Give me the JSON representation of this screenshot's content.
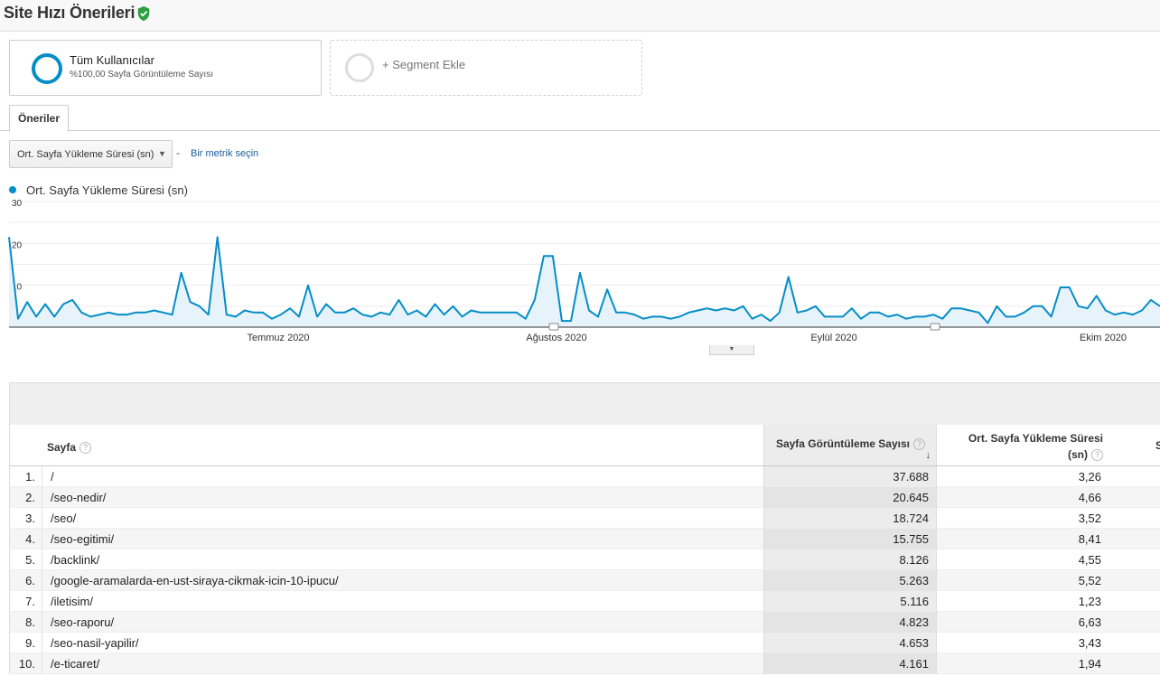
{
  "header": {
    "title": "Site Hızı Önerileri",
    "verified_icon": "shield-check-icon",
    "verified_color": "#2ea043"
  },
  "segments": {
    "active": {
      "name": "Tüm Kullanıcılar",
      "subtitle": "%100,00 Sayfa Görüntüleme Sayısı",
      "color": "#058dc7"
    },
    "add_label": "+ Segment Ekle"
  },
  "tabs": [
    {
      "label": "Öneriler",
      "active": true
    }
  ],
  "metric_selector": {
    "selected": "Ort. Sayfa Yükleme Süresi (sn)",
    "separator": "-",
    "add_link": "Bir metrik seçin"
  },
  "chart_data": {
    "type": "area",
    "series": [
      {
        "name": "Ort. Sayfa Yükleme Süresi (sn)",
        "color": "#058dc7",
        "values": [
          21.5,
          2,
          6,
          2.5,
          5.5,
          2.5,
          5.5,
          6.5,
          3.5,
          2.5,
          3,
          3.5,
          3,
          3,
          3.5,
          3.5,
          4,
          3.5,
          3,
          13,
          6,
          5,
          3,
          21.5,
          3,
          2.5,
          4,
          3.5,
          3.5,
          2,
          3,
          4.5,
          2.5,
          10,
          2.5,
          5.5,
          3.5,
          3.5,
          4.5,
          3,
          2.5,
          3.5,
          3,
          6.5,
          3,
          4,
          2.5,
          5.5,
          3,
          5,
          2.5,
          4,
          3.5,
          3.5,
          3.5,
          3.5,
          3.5,
          2,
          6.5,
          17,
          17,
          1.5,
          1.5,
          13,
          4,
          2.5,
          9,
          3.5,
          3.5,
          3,
          2,
          2.5,
          2.5,
          2,
          2.5,
          3.5,
          4,
          4.5,
          4,
          4.5,
          4,
          5,
          2,
          3,
          1.5,
          3.5,
          12,
          3.5,
          4,
          5,
          2.5,
          2.5,
          2.5,
          4.5,
          2,
          3.5,
          3.5,
          2.5,
          3,
          2,
          2.5,
          2.5,
          3,
          2,
          4.5,
          4.5,
          4,
          3.5,
          1,
          5,
          2.5,
          2.5,
          3.5,
          5,
          5,
          2.5,
          9.5,
          9.5,
          5,
          4.5,
          7.5,
          4,
          3,
          3.5,
          3,
          4,
          6.5,
          5
        ]
      }
    ],
    "x_labels": [
      "Temmuz 2020",
      "Ağustos 2020",
      "Eylül 2020",
      "Ekim 2020"
    ],
    "y_ticks": [
      "30",
      "20",
      "10"
    ],
    "ylim": [
      0,
      30
    ],
    "grid": true,
    "legend": "top-left"
  },
  "table": {
    "columns": {
      "page": "Sayfa",
      "views": "Sayfa Görüntüleme Sayısı",
      "load_line1": "Ort. Sayfa Yükleme Süresi",
      "load_line2": "(sn)",
      "extra": "S"
    },
    "rows": [
      {
        "num": "1.",
        "page": "/",
        "views": "37.688",
        "load": "3,26"
      },
      {
        "num": "2.",
        "page": "/seo-nedir/",
        "views": "20.645",
        "load": "4,66"
      },
      {
        "num": "3.",
        "page": "/seo/",
        "views": "18.724",
        "load": "3,52"
      },
      {
        "num": "4.",
        "page": "/seo-egitimi/",
        "views": "15.755",
        "load": "8,41"
      },
      {
        "num": "5.",
        "page": "/backlink/",
        "views": "8.126",
        "load": "4,55"
      },
      {
        "num": "6.",
        "page": "/google-aramalarda-en-ust-siraya-cikmak-icin-10-ipucu/",
        "views": "5.263",
        "load": "5,52"
      },
      {
        "num": "7.",
        "page": "/iletisim/",
        "views": "5.116",
        "load": "1,23"
      },
      {
        "num": "8.",
        "page": "/seo-raporu/",
        "views": "4.823",
        "load": "6,63"
      },
      {
        "num": "9.",
        "page": "/seo-nasil-yapilir/",
        "views": "4.653",
        "load": "3,43"
      },
      {
        "num": "10.",
        "page": "/e-ticaret/",
        "views": "4.161",
        "load": "1,94"
      }
    ]
  }
}
